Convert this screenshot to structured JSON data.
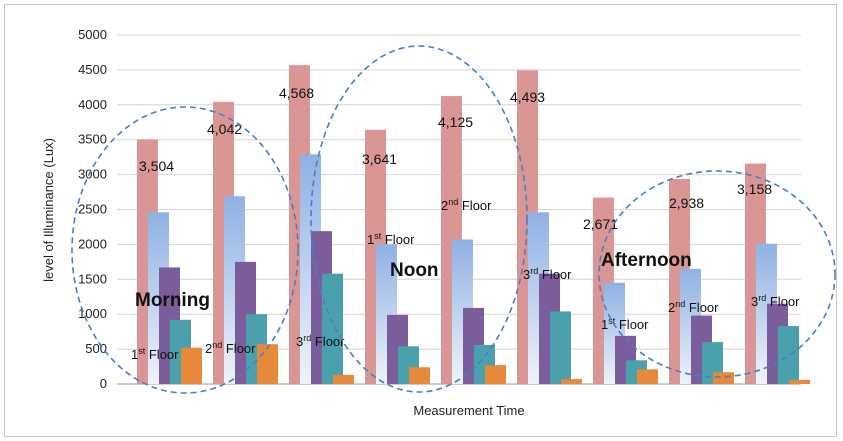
{
  "chart_data": {
    "type": "bar",
    "xlabel": "Measurement Time",
    "ylabel": "level of Illuminance (Lux)",
    "ylim": [
      0,
      5000
    ],
    "yticks": [
      "0",
      "500",
      "1000",
      "1500",
      "2000",
      "2500",
      "3000",
      "3500",
      "4000",
      "4500",
      "5000"
    ],
    "grid": true,
    "colors": [
      "#d99694",
      "#b9cdea",
      "#7b5d9b",
      "#4aa0ad",
      "#e6893b"
    ],
    "categories": [
      "",
      "",
      "",
      "",
      "",
      "",
      "",
      "",
      ""
    ],
    "groups": [
      {
        "values": [
          3504,
          2460,
          1670,
          920,
          520
        ]
      },
      {
        "values": [
          4042,
          2690,
          1750,
          1000,
          570
        ]
      },
      {
        "values": [
          4568,
          3290,
          2190,
          1580,
          130
        ]
      },
      {
        "values": [
          3641,
          2000,
          990,
          540,
          240
        ]
      },
      {
        "values": [
          4125,
          2070,
          1090,
          560,
          270
        ]
      },
      {
        "values": [
          4493,
          2460,
          1580,
          1040,
          70
        ]
      },
      {
        "values": [
          2671,
          1450,
          690,
          340,
          210
        ]
      },
      {
        "values": [
          2938,
          1650,
          980,
          600,
          170
        ]
      },
      {
        "values": [
          3158,
          2010,
          1150,
          830,
          60
        ]
      }
    ],
    "data_labels": [
      "3,504",
      "4,042",
      "4,568",
      "3,641",
      "4,125",
      "4,493",
      "2,671",
      "2,938",
      "3,158"
    ],
    "floor_labels": [
      {
        "base": "1",
        "sup": "st",
        "rest": " Floor"
      },
      {
        "base": "2",
        "sup": "nd",
        "rest": " Floor"
      },
      {
        "base": "3",
        "sup": "rd",
        "rest": " Floor"
      },
      {
        "base": "1",
        "sup": "st",
        "rest": " Floor"
      },
      {
        "base": "2",
        "sup": "nd",
        "rest": " Floor"
      },
      {
        "base": "3",
        "sup": "rd",
        "rest": " Floor"
      },
      {
        "base": "1",
        "sup": "st",
        "rest": " Floor"
      },
      {
        "base": "2",
        "sup": "nd",
        "rest": " Floor"
      },
      {
        "base": "3",
        "sup": "rd",
        "rest": " Floor"
      }
    ],
    "annotations": [
      "Morning",
      "Noon",
      "Afternoon"
    ],
    "annotation_color": "#4a7ec4"
  }
}
